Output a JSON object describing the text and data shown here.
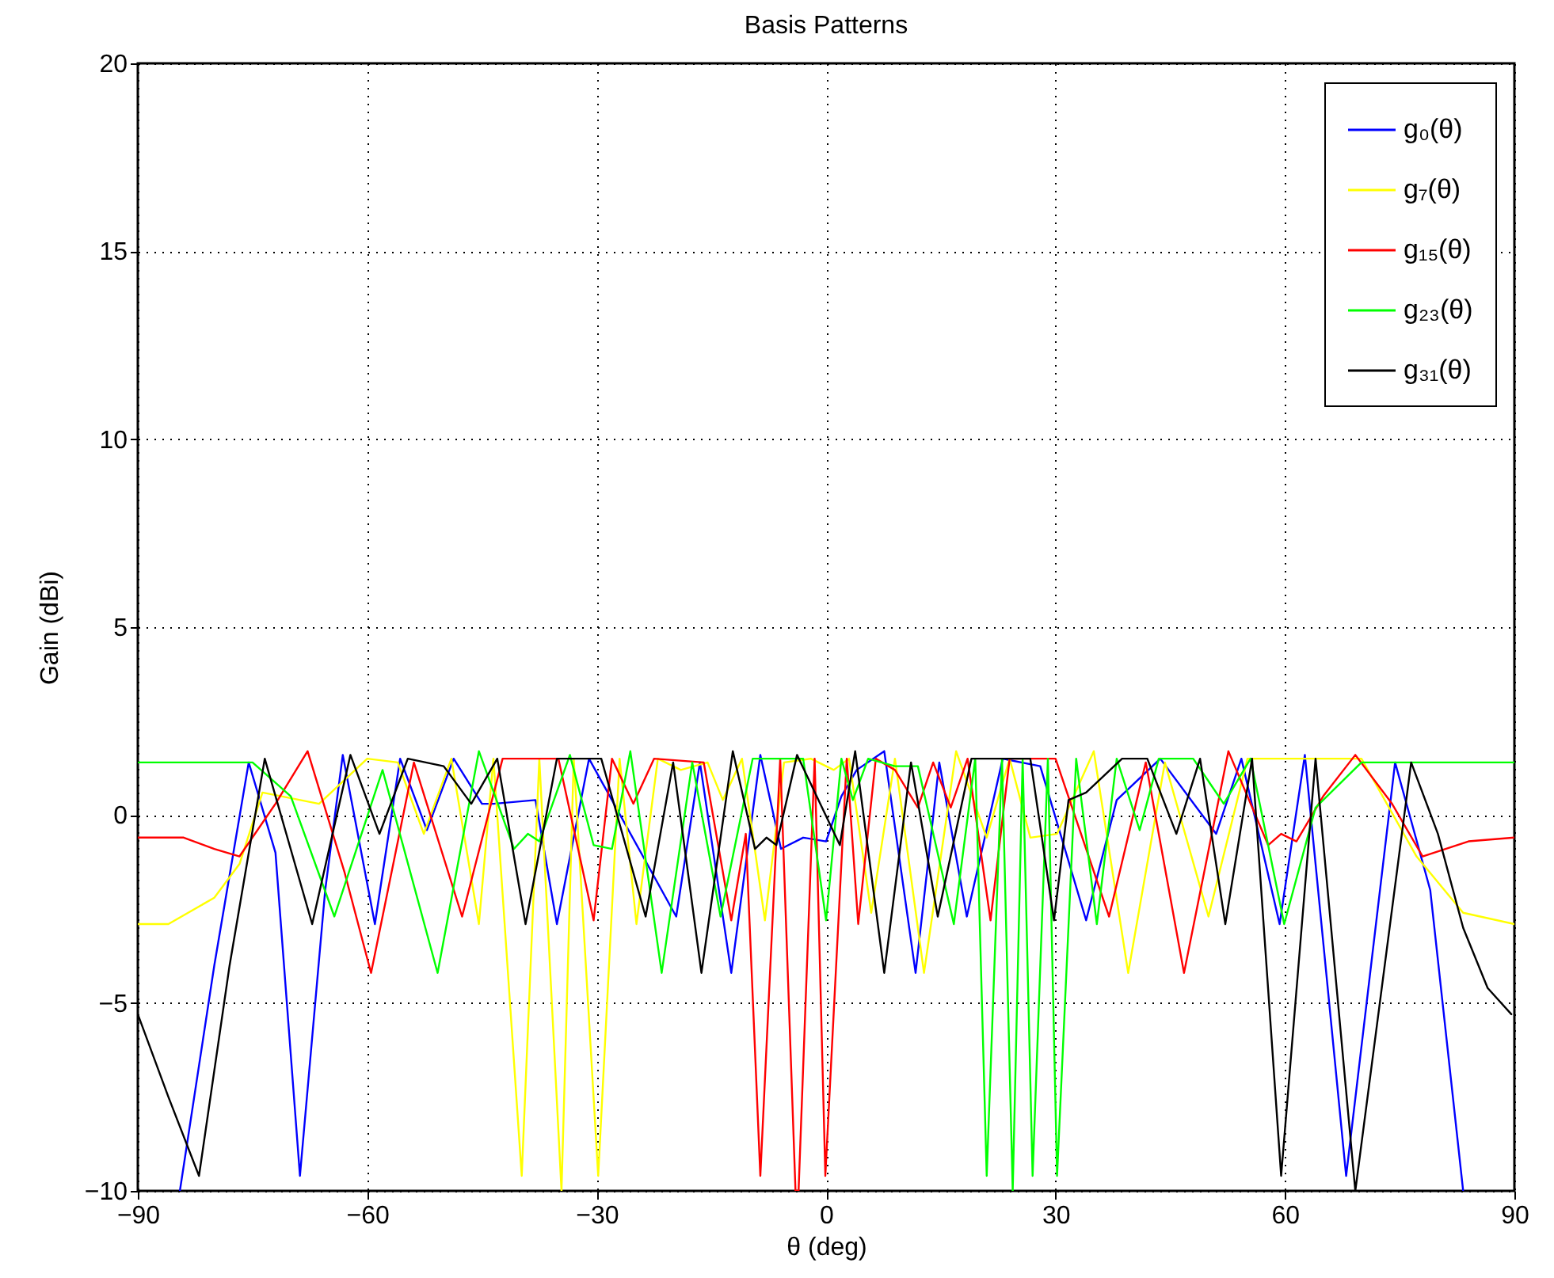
{
  "chart_data": {
    "type": "line",
    "title": "Basis Patterns",
    "xlabel": "θ (deg)",
    "ylabel": "Gain (dBi)",
    "xlim": [
      -90,
      90
    ],
    "ylim": [
      -10,
      20
    ],
    "xticks": [
      -90,
      -60,
      -30,
      0,
      30,
      60,
      90
    ],
    "yticks": [
      -10,
      -5,
      0,
      5,
      10,
      15,
      20
    ],
    "grid": true,
    "legend": "top right",
    "series": [
      {
        "name": "g₀(θ)",
        "color": "#0000ff",
        "x": [
          -84.5,
          -80,
          -75.5,
          -72,
          -68.8,
          -65.5,
          -63.2,
          -59,
          -55.7,
          -52.2,
          -48.7,
          -45,
          -43.5,
          -38,
          -35.2,
          -31,
          -19.6,
          -16.5,
          -12.4,
          -8.6,
          -5.9,
          -3,
          0,
          2,
          4,
          7.6,
          11.7,
          14.8,
          18.4,
          23.1,
          28,
          34,
          38,
          43.7,
          51,
          54.3,
          59.3,
          62.6,
          68,
          74.4,
          79,
          83.3
        ],
        "values": [
          -10,
          -4,
          1.4,
          -1,
          -9.6,
          -2,
          1.6,
          -2.9,
          1.5,
          -0.4,
          1.5,
          0.3,
          0.3,
          0.4,
          -2.9,
          1.5,
          -2.7,
          1.4,
          -4.2,
          1.6,
          -0.9,
          -0.6,
          -0.7,
          0.5,
          1.2,
          1.7,
          -4.2,
          1.4,
          -2.7,
          1.5,
          1.3,
          -2.8,
          0.4,
          1.5,
          -0.5,
          1.5,
          -2.9,
          1.6,
          -9.6,
          1.4,
          -2,
          -10
        ]
      },
      {
        "name": "g₇(θ)",
        "color": "#ffff00",
        "x": [
          -90,
          -86,
          -80,
          -76.7,
          -73.7,
          -66.3,
          -60,
          -56,
          -52.6,
          -49,
          -45.4,
          -43.5,
          -39.8,
          -37.5,
          -34.6,
          -33,
          -29.8,
          -27,
          -24.8,
          -22,
          -19,
          -15.5,
          -13.5,
          -11,
          -8,
          -5.5,
          -2,
          1,
          3,
          5.9,
          9,
          12.8,
          17,
          21,
          24,
          26.7,
          30.2,
          35,
          39.5,
          44.3,
          50,
          55.1,
          62,
          70,
          77.2,
          83.3,
          90
        ],
        "values": [
          -2.9,
          -2.9,
          -2.2,
          -1.3,
          0.6,
          0.3,
          1.5,
          1.4,
          -0.5,
          1.5,
          -2.9,
          1.5,
          -9.6,
          1.5,
          -10,
          1.5,
          -9.6,
          1.5,
          -2.9,
          1.5,
          1.2,
          1.4,
          0.4,
          1.5,
          -2.8,
          1.4,
          1.5,
          1.2,
          1.5,
          -2.6,
          1.5,
          -4.2,
          1.7,
          -0.6,
          1.5,
          -0.6,
          -0.5,
          1.7,
          -4.2,
          1.4,
          -2.7,
          1.5,
          1.5,
          1.5,
          -1.1,
          -2.6,
          -2.9
        ]
      },
      {
        "name": "g₁₅(θ)",
        "color": "#ff0000",
        "x": [
          -90,
          -84,
          -80,
          -76.7,
          -72,
          -67.8,
          -63,
          -59.5,
          -53.9,
          -47.6,
          -42.3,
          -35,
          -30.4,
          -28,
          -25.2,
          -22.5,
          -16,
          -12.4,
          -10.5,
          -8.6,
          -6,
          -4,
          -3.6,
          -1.5,
          -0.1,
          2.7,
          4.2,
          6.5,
          9,
          12,
          14,
          16.3,
          18.5,
          21.5,
          24,
          30,
          37,
          41.8,
          46.8,
          52.6,
          57.8,
          59.5,
          61.5,
          65,
          69.2,
          74,
          78,
          84,
          90
        ],
        "values": [
          -0.6,
          -0.6,
          -0.9,
          -1.1,
          0.3,
          1.7,
          -1.5,
          -4.2,
          1.4,
          -2.7,
          1.5,
          1.5,
          -2.8,
          1.5,
          0.3,
          1.5,
          1.4,
          -2.8,
          -0.5,
          -9.6,
          1.5,
          -10,
          -10,
          1.5,
          -9.6,
          1.5,
          -2.9,
          1.5,
          1.2,
          0.2,
          1.4,
          0.2,
          1.5,
          -2.8,
          1.5,
          1.5,
          -2.7,
          1.4,
          -4.2,
          1.7,
          -0.8,
          -0.5,
          -0.7,
          0.5,
          1.6,
          0.3,
          -1.1,
          -0.7,
          -0.6
        ]
      },
      {
        "name": "g₂₃(θ)",
        "color": "#00ff00",
        "x": [
          -90,
          -75,
          -70,
          -64.3,
          -58,
          -50.8,
          -45.4,
          -40.8,
          -39,
          -37.5,
          -33.5,
          -30.4,
          -28,
          -25.6,
          -21.5,
          -17.5,
          -13.8,
          -9.6,
          -3,
          0,
          2,
          3.5,
          5.5,
          9,
          12,
          16.7,
          19.5,
          21,
          23,
          24.4,
          25.7,
          27,
          29,
          30.2,
          32.7,
          35.4,
          38,
          41,
          43.5,
          48,
          52,
          55.5,
          59.9,
          64,
          70,
          80,
          90
        ],
        "values": [
          1.4,
          1.4,
          0.5,
          -2.7,
          1.2,
          -4.2,
          1.7,
          -0.9,
          -0.5,
          -0.7,
          1.6,
          -0.8,
          -0.9,
          1.7,
          -4.2,
          1.4,
          -2.7,
          1.5,
          1.5,
          -2.8,
          1.5,
          0.4,
          1.5,
          1.3,
          1.3,
          -2.9,
          1.5,
          -9.6,
          1.5,
          -10,
          1.5,
          -9.6,
          1.5,
          -9.6,
          1.5,
          -2.9,
          1.5,
          -0.4,
          1.5,
          1.5,
          0.3,
          1.5,
          -2.9,
          0.2,
          1.4,
          1.4,
          1.4
        ]
      },
      {
        "name": "g₃₁(θ)",
        "color": "#000000",
        "x": [
          -90,
          -86,
          -82,
          -78,
          -73.4,
          -67.2,
          -62.2,
          -58.4,
          -54.7,
          -50,
          -46.4,
          -43,
          -39.3,
          -35.2,
          -29.4,
          -23.6,
          -20,
          -16.3,
          -12.2,
          -9.3,
          -7.8,
          -6.5,
          -3.8,
          1.8,
          3.8,
          7.6,
          11.1,
          14.6,
          19,
          26.7,
          29.8,
          31.7,
          34,
          38.7,
          42,
          45.8,
          48.9,
          52.2,
          55.7,
          59.5,
          64,
          69.2,
          76.5,
          80,
          83.3,
          86.5,
          89.6
        ],
        "values": [
          -5.3,
          -7.5,
          -9.6,
          -4,
          1.5,
          -2.9,
          1.6,
          -0.5,
          1.5,
          1.3,
          0.3,
          1.5,
          -2.9,
          1.5,
          1.5,
          -2.7,
          1.4,
          -4.2,
          1.7,
          -0.9,
          -0.6,
          -0.8,
          1.6,
          -0.8,
          1.7,
          -4.2,
          1.4,
          -2.7,
          1.5,
          1.5,
          -2.8,
          0.4,
          0.6,
          1.5,
          1.5,
          -0.5,
          1.5,
          -2.9,
          1.5,
          -9.6,
          1.5,
          -10,
          1.4,
          -0.5,
          -3,
          -4.6,
          -5.3
        ]
      }
    ]
  }
}
